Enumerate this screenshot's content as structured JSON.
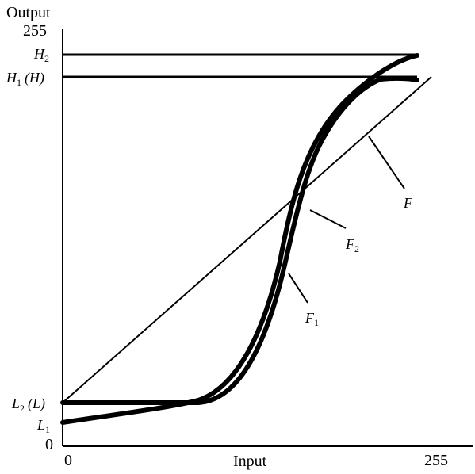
{
  "axes": {
    "y_title": "Output",
    "x_title": "Input",
    "y_top_tick": "255",
    "y_zero_tick": "0",
    "x_zero_tick": "0",
    "x_max_tick": "255"
  },
  "levels": {
    "h2_letter": "H",
    "h2_sub": "2",
    "h1_letter": "H",
    "h1_sub": "1",
    "h1_paren": "(H)",
    "l2_letter": "L",
    "l2_sub": "2",
    "l2_paren": "(L)",
    "l1_letter": "L",
    "l1_sub": "1"
  },
  "curves": {
    "F_label": "F",
    "F2_letter": "F",
    "F2_sub": "2",
    "F1_letter": "F",
    "F1_sub": "1"
  },
  "colors": {
    "ink": "#000000",
    "background": "#ffffff"
  }
}
